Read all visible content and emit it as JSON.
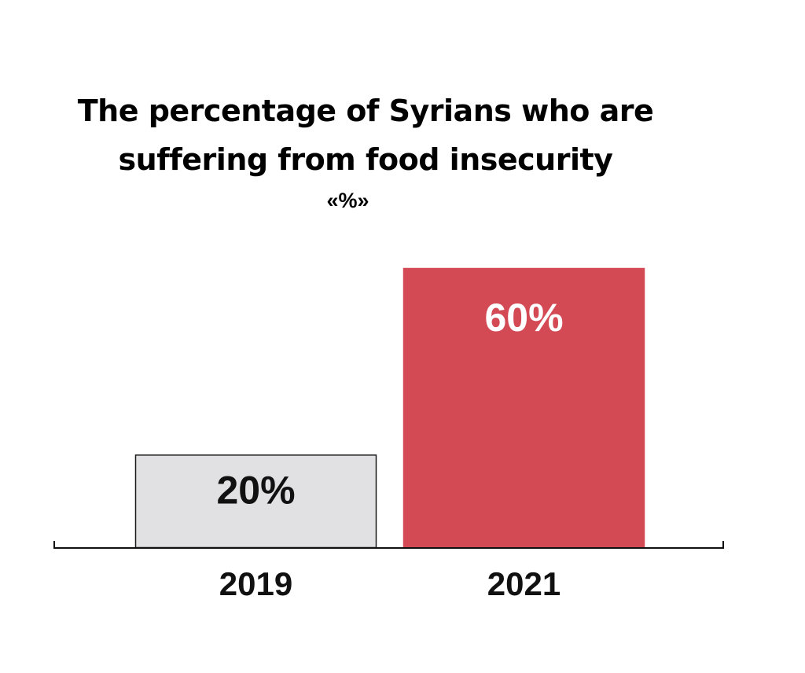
{
  "chart_data": {
    "type": "bar",
    "title_lines": [
      "The percentage of Syrians who are",
      "suffering from food insecurity"
    ],
    "unit": "«%»",
    "categories": [
      "2019",
      "2021"
    ],
    "values": [
      20,
      60
    ],
    "value_labels": [
      "20%",
      "60%"
    ],
    "ylim": [
      0,
      60
    ],
    "grid": false,
    "colors": {
      "bars": [
        "#e1e1e3",
        "#d34a55"
      ],
      "bar_outline": [
        "#1a1a1a",
        "#d34a55"
      ],
      "value_label": [
        "#111111",
        "#ffffff"
      ],
      "axis": "#111111"
    }
  }
}
